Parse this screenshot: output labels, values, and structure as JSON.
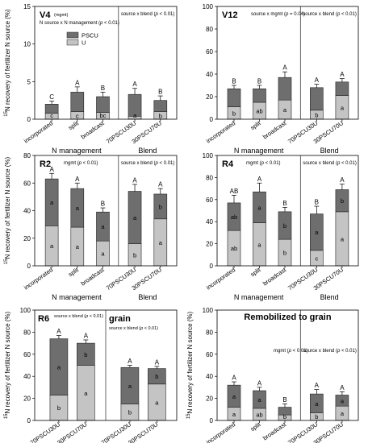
{
  "figure": {
    "y_axis_label_sup": "15",
    "y_axis_label": "N recovery of fertilizer N source (%)",
    "group_label_management": "N management",
    "group_label_blend": "Blend",
    "legend": [
      {
        "name": "PSCU",
        "color": "#6e6e6e"
      },
      {
        "name": "U",
        "color": "#c4c4c4"
      }
    ]
  },
  "chart_data": [
    {
      "type": "bar",
      "stacked": true,
      "panel": "V4",
      "title": "V4",
      "ylim": [
        0,
        15
      ],
      "yticks": [
        0,
        5,
        10,
        15
      ],
      "tick_labels": [
        "0",
        "5",
        "10",
        "15"
      ],
      "annot_left": "N source x N management (p < 0.01)",
      "annot_left_sup": "(mgmt)",
      "annot_right": "source x blend (p < 0.01)",
      "show_legend": true,
      "show_ylabel": true,
      "groups": [
        {
          "label": "N management",
          "categories": [
            "incorporated",
            "split",
            "broadcast"
          ],
          "U": [
            0.8,
            1.0,
            0.9
          ],
          "total": [
            2.0,
            3.6,
            3.0
          ],
          "err": [
            0.4,
            0.7,
            0.6
          ],
          "top_letters": [
            "C",
            "A",
            "B"
          ],
          "bottom_letters": [
            "c",
            "c",
            "bc"
          ],
          "mid_letters": [
            "",
            "",
            ""
          ]
        },
        {
          "label": "Blend",
          "categories": [
            "70PSCU30U",
            "30PSCU70U"
          ],
          "U": [
            0.4,
            1.0
          ],
          "total": [
            3.3,
            2.5
          ],
          "err": [
            0.8,
            0.6
          ],
          "top_letters": [
            "A",
            "B"
          ],
          "bottom_letters": [
            "a",
            "b"
          ],
          "mid_letters": [
            "",
            ""
          ]
        }
      ]
    },
    {
      "type": "bar",
      "stacked": true,
      "panel": "V12",
      "title": "V12",
      "ylim": [
        0,
        100
      ],
      "yticks": [
        0,
        20,
        40,
        60,
        80,
        100
      ],
      "tick_labels": [
        "0",
        "20",
        "40",
        "60",
        "80",
        "100"
      ],
      "annot_left": "source x mgmt (p = 0.04)",
      "annot_left_sup": "",
      "annot_right": "source x blend (p < 0.01)",
      "show_legend": false,
      "show_ylabel": false,
      "groups": [
        {
          "label": "N management",
          "categories": [
            "incorporated",
            "split",
            "broadcast"
          ],
          "U": [
            11,
            15,
            17
          ],
          "total": [
            27,
            27,
            37
          ],
          "err": [
            3,
            3,
            5
          ],
          "top_letters": [
            "B",
            "B",
            "A"
          ],
          "bottom_letters": [
            "b",
            "ab",
            "a"
          ],
          "mid_letters": [
            "",
            "",
            ""
          ]
        },
        {
          "label": "Blend",
          "categories": [
            "70PSCU30U",
            "30PSCU70U"
          ],
          "U": [
            8,
            21
          ],
          "total": [
            28,
            33
          ],
          "err": [
            3,
            3
          ],
          "top_letters": [
            "A",
            "A"
          ],
          "bottom_letters": [
            "b",
            "a"
          ],
          "mid_letters": [
            "",
            ""
          ]
        }
      ]
    },
    {
      "type": "bar",
      "stacked": true,
      "panel": "R2",
      "title": "R2",
      "ylim": [
        0,
        80
      ],
      "yticks": [
        0,
        20,
        40,
        60,
        80
      ],
      "tick_labels": [
        "0",
        "20",
        "40",
        "60",
        "80"
      ],
      "annot_left": "mgmt (p < 0.01)",
      "annot_left_sup": "",
      "annot_right": "source x blend (p < 0.01)",
      "show_legend": false,
      "show_ylabel": true,
      "groups": [
        {
          "label": "N management",
          "categories": [
            "incorporated",
            "split",
            "broadcast"
          ],
          "U": [
            29,
            28,
            18
          ],
          "total": [
            63,
            56,
            39
          ],
          "err": [
            4,
            4,
            3
          ],
          "top_letters": [
            "A",
            "A",
            "B"
          ],
          "bottom_letters": [
            "a",
            "a",
            "a"
          ],
          "mid_letters": [
            "a",
            "a",
            "a"
          ]
        },
        {
          "label": "Blend",
          "categories": [
            "70PSCU30U",
            "30PSCU70U"
          ],
          "U": [
            16,
            34
          ],
          "total": [
            54,
            52
          ],
          "err": [
            5,
            4
          ],
          "top_letters": [
            "A",
            "A"
          ],
          "bottom_letters": [
            "b",
            "a"
          ],
          "mid_letters": [
            "a",
            "b"
          ]
        }
      ]
    },
    {
      "type": "bar",
      "stacked": true,
      "panel": "R4",
      "title": "R4",
      "ylim": [
        0,
        100
      ],
      "yticks": [
        0,
        20,
        40,
        60,
        80,
        100
      ],
      "tick_labels": [
        "0",
        "20",
        "40",
        "60",
        "80",
        "100"
      ],
      "annot_left": "mgmt (p < 0.01)",
      "annot_left_sup": "",
      "annot_right": "source x blend (p < 0.01)",
      "show_legend": false,
      "show_ylabel": false,
      "groups": [
        {
          "label": "N management",
          "categories": [
            "incorporated",
            "split",
            "broadcast"
          ],
          "U": [
            32,
            39,
            24
          ],
          "total": [
            57,
            67,
            49
          ],
          "err": [
            7,
            8,
            4
          ],
          "top_letters": [
            "AB",
            "A",
            "B"
          ],
          "bottom_letters": [
            "ab",
            "a",
            "b"
          ],
          "mid_letters": [
            "ab",
            "a",
            "b"
          ]
        },
        {
          "label": "Blend",
          "categories": [
            "70PSCU30U",
            "30PSCU70U"
          ],
          "U": [
            14,
            49
          ],
          "total": [
            47,
            69
          ],
          "err": [
            7,
            5
          ],
          "top_letters": [
            "B",
            "A"
          ],
          "bottom_letters": [
            "c",
            "a"
          ],
          "mid_letters": [
            "a",
            "b"
          ]
        }
      ]
    },
    {
      "type": "bar",
      "stacked": true,
      "panel": "R6",
      "title": "R6",
      "ylim": [
        0,
        100
      ],
      "yticks": [
        0,
        20,
        40,
        60,
        80,
        100
      ],
      "tick_labels": [
        "0",
        "20",
        "40",
        "60",
        "80",
        "100"
      ],
      "annot_left": "",
      "annot_left_sup": "",
      "annot_right": "source x blend (p < 0.01)",
      "show_legend": false,
      "show_ylabel": true,
      "split_width": true,
      "groups": [
        {
          "label": "Blend",
          "categories": [
            "70PSCU30U",
            "30PSCU70U"
          ],
          "U": [
            23,
            50
          ],
          "total": [
            74,
            70
          ],
          "err": [
            3,
            3
          ],
          "top_letters": [
            "A",
            "A"
          ],
          "bottom_letters": [
            "b",
            "a"
          ],
          "mid_letters": [
            "a",
            "b"
          ]
        }
      ],
      "second": {
        "title": "grain",
        "annot_right": "source x blend (p < 0.01)",
        "groups": [
          {
            "label": "Blend",
            "categories": [
              "70PSCU30U",
              "30PSCU70U"
            ],
            "U": [
              15,
              33
            ],
            "total": [
              48,
              47
            ],
            "err": [
              2,
              2
            ],
            "top_letters": [
              "A",
              "A"
            ],
            "bottom_letters": [
              "b",
              "a"
            ],
            "mid_letters": [
              "a",
              "b"
            ]
          }
        ]
      }
    },
    {
      "type": "bar",
      "stacked": true,
      "panel": "Remobilized",
      "title": "Remobilized to grain",
      "ylim": [
        0,
        100
      ],
      "yticks": [
        0,
        20,
        40,
        60,
        80,
        100
      ],
      "tick_labels": [
        "0",
        "20",
        "40",
        "60",
        "80",
        "100"
      ],
      "annot_left": "mgmt (p < 0.01)",
      "annot_left_sup": "",
      "annot_right": "source x blend (p < 0.01)",
      "show_legend": false,
      "show_ylabel": true,
      "groups": [
        {
          "label": "N management",
          "categories": [
            "incorporated",
            "split",
            "broadcast"
          ],
          "U": [
            12,
            11,
            5
          ],
          "total": [
            32,
            27,
            12
          ],
          "err": [
            3,
            3,
            3
          ],
          "top_letters": [
            "A",
            "A",
            "B"
          ],
          "bottom_letters": [
            "a",
            "ab",
            "b"
          ],
          "mid_letters": [
            "a",
            "a",
            "b"
          ]
        },
        {
          "label": "Blend",
          "categories": [
            "70PSCU30U",
            "30PSCU70U"
          ],
          "U": [
            7,
            13
          ],
          "total": [
            24,
            23
          ],
          "err": [
            4,
            3
          ],
          "top_letters": [
            "A",
            "A"
          ],
          "bottom_letters": [
            "b",
            "a"
          ],
          "mid_letters": [
            "a",
            "a"
          ]
        }
      ]
    }
  ]
}
